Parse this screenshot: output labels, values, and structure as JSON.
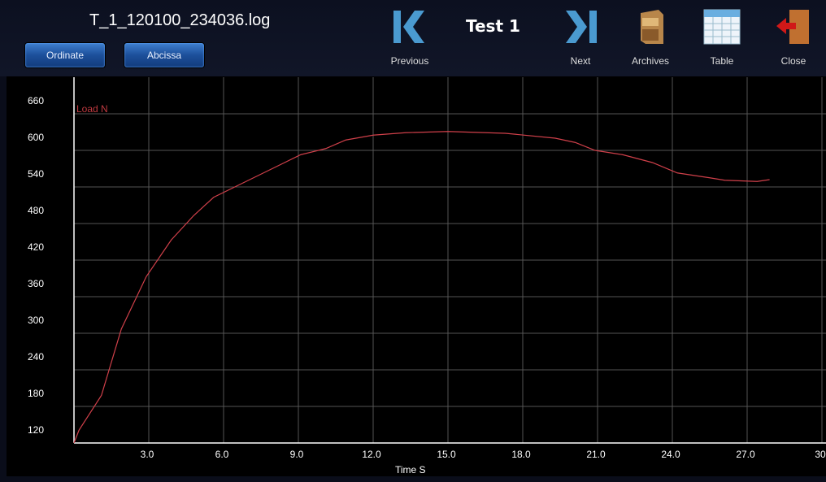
{
  "header": {
    "file_name": "T_1_120100_234036.log",
    "test_name": "Test 1",
    "buttons": {
      "ordinate": "Ordinate",
      "abscissa": "Abcissa"
    },
    "toolbar": [
      {
        "label": "Previous",
        "icon": "skip-previous-icon"
      },
      {
        "label": "Next",
        "icon": "skip-next-icon"
      },
      {
        "label": "Archives",
        "icon": "file-cabinet-icon"
      },
      {
        "label": "Table",
        "icon": "table-icon"
      },
      {
        "label": "Close",
        "icon": "exit-door-icon"
      }
    ]
  },
  "chart_data": {
    "type": "line",
    "xlabel": "Time  S",
    "ylabel": "Load  N",
    "xlim": [
      0,
      30
    ],
    "ylim": [
      120,
      720
    ],
    "xticks": [
      "3.0",
      "6.0",
      "9.0",
      "12.0",
      "15.0",
      "18.0",
      "21.0",
      "24.0",
      "27.0",
      "30"
    ],
    "yticks": [
      "120",
      "180",
      "240",
      "300",
      "360",
      "420",
      "480",
      "540",
      "600",
      "660"
    ],
    "grid": true,
    "line_color": "#d0404a",
    "x": [
      0,
      0.2,
      1.1,
      1.9,
      2.9,
      3.9,
      4.8,
      5.6,
      6.8,
      8.1,
      9.1,
      10.1,
      10.9,
      12.0,
      13.3,
      15.0,
      17.3,
      19.3,
      20.1,
      20.9,
      22.0,
      23.2,
      24.2,
      25.5,
      26.1,
      27.4,
      27.9
    ],
    "y": [
      120,
      141,
      198,
      307,
      393,
      453,
      493,
      523,
      547,
      573,
      593,
      603,
      617,
      625,
      629,
      631,
      628,
      620,
      613,
      600,
      593,
      580,
      563,
      555,
      551,
      549,
      552
    ]
  }
}
